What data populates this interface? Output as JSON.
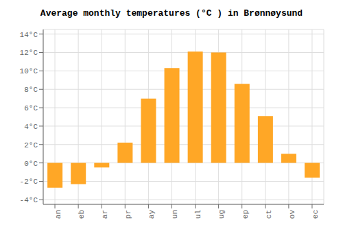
{
  "chart_data": {
    "type": "bar",
    "title": "Average monthly temperatures (°C ) in Brønnøysund",
    "categories": [
      "an",
      "eb",
      "ar",
      "pr",
      "ay",
      "un",
      "ul",
      "ug",
      "ep",
      "ct",
      "ov",
      "ec"
    ],
    "values": [
      -2.7,
      -2.3,
      -0.5,
      2.2,
      7.0,
      10.3,
      12.1,
      12.0,
      8.6,
      5.1,
      1.0,
      -1.6
    ],
    "color": "#FFA726",
    "ylim": [
      -4.5,
      14.5
    ],
    "yticks": [
      {
        "value": -4,
        "label": "-4°C"
      },
      {
        "value": -2,
        "label": "-2°C"
      },
      {
        "value": 0,
        "label": "0°C"
      },
      {
        "value": 2,
        "label": "2°C"
      },
      {
        "value": 4,
        "label": "4°C"
      },
      {
        "value": 6,
        "label": "6°C"
      },
      {
        "value": 8,
        "label": "8°C"
      },
      {
        "value": 10,
        "label": "10°C"
      },
      {
        "value": 12,
        "label": "12°C"
      },
      {
        "value": 14,
        "label": "14°C"
      }
    ],
    "grid": true
  }
}
